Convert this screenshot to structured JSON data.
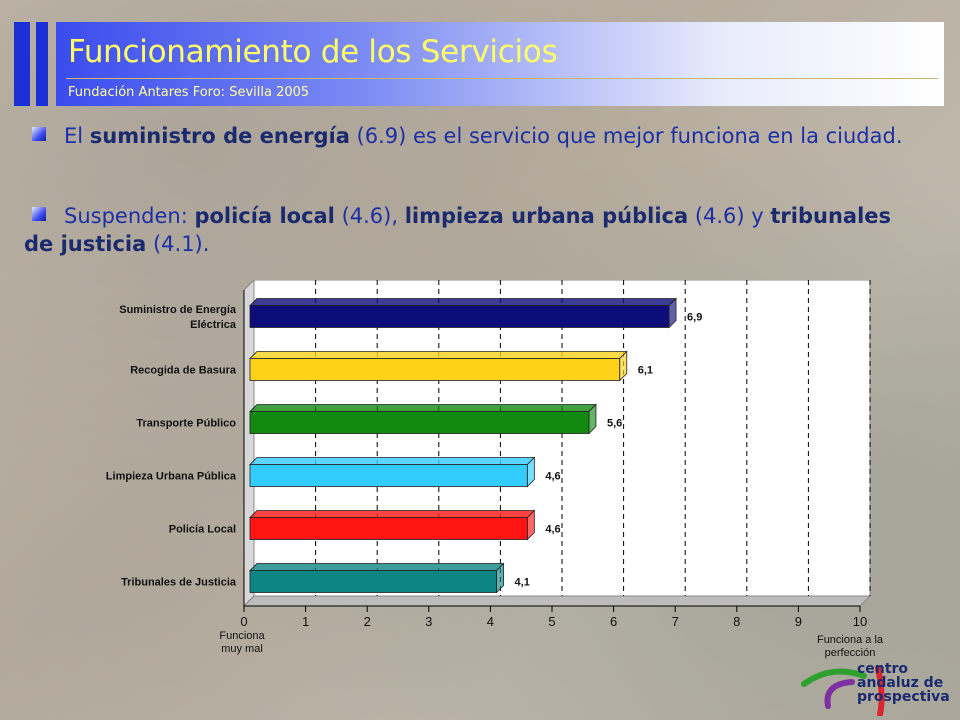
{
  "header": {
    "title": "Funcionamiento de los Servicios",
    "subtitle": "Fundación Antares Foro: Sevilla 2005"
  },
  "paragraphs": [
    {
      "parts": [
        {
          "text": "El ",
          "bold": false
        },
        {
          "text": "suministro de energía",
          "bold": true
        },
        {
          "text": " (6.9) es el servicio que mejor funciona en la ciudad.",
          "bold": false
        }
      ]
    },
    {
      "parts": [
        {
          "text": "Suspenden: ",
          "bold": false
        },
        {
          "text": "policía local",
          "bold": true
        },
        {
          "text": " (4.6), ",
          "bold": false
        },
        {
          "text": "limpieza urbana pública",
          "bold": true
        },
        {
          "text": " (4.6) y ",
          "bold": false
        },
        {
          "text": "tribunales de justicia",
          "bold": true
        },
        {
          "text": " (4.1).",
          "bold": false
        }
      ]
    }
  ],
  "chart_data": {
    "type": "bar",
    "orientation": "horizontal",
    "categories": [
      [
        "Suministro de Energía",
        "Eléctrica"
      ],
      [
        "Recogida de Basura"
      ],
      [
        "Transporte Público"
      ],
      [
        "Limpieza Urbana Pública"
      ],
      [
        "Policía Local"
      ],
      [
        "Tribunales de Justicia"
      ]
    ],
    "values": [
      6.9,
      6.1,
      5.6,
      4.6,
      4.6,
      4.1
    ],
    "value_labels": [
      "6,9",
      "6,1",
      "5,6",
      "4,6",
      "4,6",
      "4,1"
    ],
    "colors": [
      "#0d0d7a",
      "#ffd21a",
      "#128a12",
      "#33ccff",
      "#ff1414",
      "#0d8585"
    ],
    "xlim": [
      0,
      10
    ],
    "xticks": [
      0,
      1,
      2,
      3,
      4,
      5,
      6,
      7,
      8,
      9,
      10
    ],
    "grid": "vertical dashed",
    "xlabel_left": [
      "Funciona",
      "muy mal"
    ],
    "xlabel_right": [
      "Funciona a la",
      "perfección"
    ]
  },
  "logo": {
    "lines": [
      "centro",
      "andaluz de",
      "prospectiva"
    ],
    "colors": [
      "#2fa12f",
      "#7e2fa1",
      "#d9262f",
      "#1b2a6e"
    ]
  }
}
